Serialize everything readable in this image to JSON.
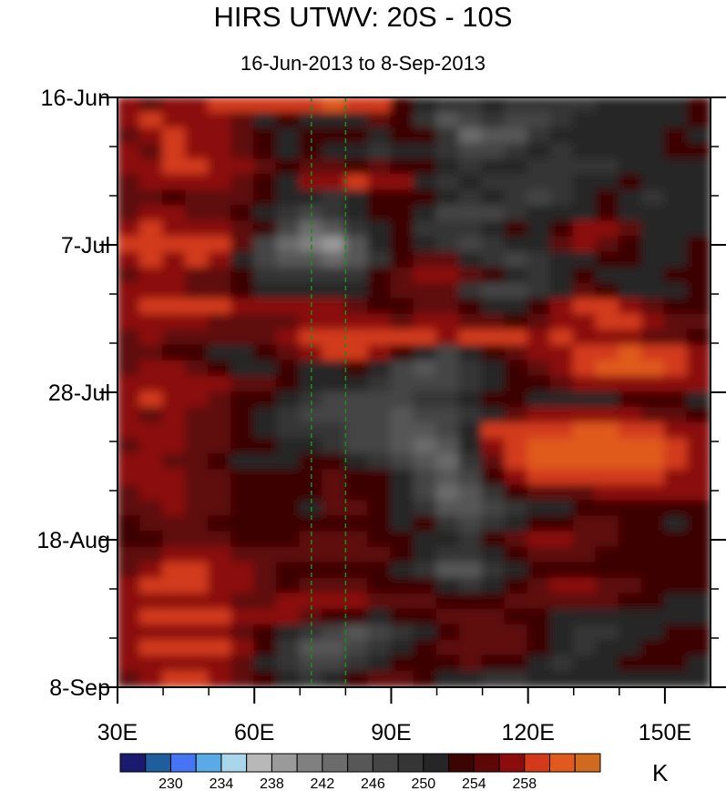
{
  "chart_data": {
    "type": "heatmap",
    "title": "HIRS UTWV: 20S - 10S",
    "subtitle": "16-Jun-2013 to 8-Sep-2013",
    "x_tick_labels": [
      "30E",
      "60E",
      "90E",
      "120E",
      "150E"
    ],
    "x_ticks": [
      30,
      60,
      90,
      120,
      150
    ],
    "xlim": [
      30,
      160
    ],
    "y_tick_labels": [
      "16-Jun",
      "7-Jul",
      "28-Jul",
      "18-Aug",
      "8-Sep"
    ],
    "y_ticks": [
      0,
      21,
      42,
      63,
      84
    ],
    "ylim": [
      0,
      84
    ],
    "y_direction": "time increases downward",
    "reference_lines_lon": [
      72.5,
      80
    ],
    "colorbar": {
      "units": "K",
      "levels": [
        228,
        230,
        232,
        234,
        236,
        238,
        240,
        242,
        244,
        246,
        248,
        250,
        252,
        254,
        256,
        258,
        260
      ],
      "tick_labels": [
        "230",
        "234",
        "238",
        "242",
        "246",
        "250",
        "254",
        "258"
      ],
      "tick_values": [
        230,
        234,
        238,
        242,
        246,
        250,
        254,
        258
      ],
      "colors": [
        "#1a1a6e",
        "#1f5e9c",
        "#4575f5",
        "#5aaae8",
        "#a9d6ea",
        "#b8b8b8",
        "#9a9a9a",
        "#808080",
        "#6b6b6b",
        "#575757",
        "#454545",
        "#353535",
        "#262626",
        "#3d0404",
        "#5e0707",
        "#8c0c0c",
        "#d23a1a",
        "#e05a1e",
        "#cf6a1f"
      ]
    },
    "field": [
      [
        256,
        255,
        257,
        256,
        258,
        258,
        258,
        258,
        259,
        260,
        259,
        258,
        253,
        250,
        249,
        248,
        250,
        249,
        249,
        248,
        249,
        250,
        251,
        250,
        251,
        252
      ],
      [
        257,
        258,
        257,
        256,
        256,
        255,
        251,
        252,
        251,
        250,
        251,
        254,
        253,
        249,
        245,
        247,
        248,
        246,
        247,
        249,
        250,
        250,
        251,
        250,
        251,
        252
      ],
      [
        255,
        257,
        258,
        257,
        256,
        254,
        252,
        250,
        252,
        253,
        252,
        250,
        252,
        252,
        248,
        243,
        244,
        245,
        248,
        250,
        251,
        250,
        250,
        251,
        252,
        251
      ],
      [
        256,
        255,
        259,
        257,
        256,
        255,
        253,
        251,
        252,
        251,
        250,
        249,
        251,
        250,
        249,
        246,
        247,
        249,
        250,
        249,
        250,
        251,
        250,
        251,
        252,
        252
      ],
      [
        257,
        256,
        258,
        259,
        257,
        256,
        254,
        253,
        255,
        254,
        253,
        254,
        252,
        252,
        250,
        249,
        250,
        251,
        249,
        248,
        248,
        249,
        250,
        251,
        250,
        251
      ],
      [
        255,
        256,
        256,
        257,
        256,
        255,
        253,
        251,
        256,
        257,
        258,
        257,
        256,
        251,
        249,
        250,
        249,
        248,
        248,
        249,
        250,
        251,
        252,
        250,
        251,
        251
      ],
      [
        254,
        255,
        253,
        254,
        255,
        255,
        252,
        251,
        250,
        249,
        250,
        252,
        253,
        252,
        250,
        249,
        250,
        248,
        247,
        248,
        250,
        252,
        250,
        249,
        250,
        251
      ],
      [
        255,
        256,
        256,
        255,
        254,
        253,
        251,
        248,
        247,
        249,
        251,
        252,
        253,
        250,
        247,
        246,
        247,
        249,
        250,
        251,
        251,
        252,
        251,
        250,
        250,
        251
      ],
      [
        257,
        258,
        257,
        257,
        256,
        255,
        252,
        247,
        243,
        245,
        248,
        251,
        252,
        249,
        248,
        248,
        250,
        252,
        251,
        252,
        256,
        257,
        254,
        251,
        250,
        251
      ],
      [
        258,
        258,
        258,
        259,
        258,
        254,
        247,
        243,
        240,
        239,
        244,
        250,
        252,
        251,
        248,
        247,
        249,
        250,
        251,
        255,
        256,
        255,
        253,
        251,
        251,
        252
      ],
      [
        257,
        258,
        257,
        258,
        257,
        251,
        246,
        245,
        244,
        242,
        245,
        249,
        253,
        255,
        254,
        250,
        248,
        247,
        248,
        250,
        251,
        253,
        252,
        250,
        251,
        252
      ],
      [
        255,
        256,
        256,
        255,
        254,
        252,
        249,
        248,
        249,
        248,
        249,
        252,
        255,
        256,
        257,
        255,
        252,
        250,
        249,
        250,
        252,
        251,
        251,
        250,
        252,
        252
      ],
      [
        256,
        257,
        256,
        255,
        254,
        252,
        251,
        250,
        251,
        250,
        251,
        253,
        254,
        255,
        254,
        249,
        247,
        246,
        248,
        250,
        254,
        253,
        251,
        250,
        251,
        252
      ],
      [
        257,
        258,
        258,
        259,
        258,
        256,
        256,
        257,
        257,
        256,
        255,
        253,
        253,
        254,
        254,
        252,
        250,
        250,
        252,
        256,
        258,
        258,
        256,
        254,
        253,
        252
      ],
      [
        256,
        257,
        256,
        256,
        255,
        255,
        254,
        254,
        256,
        257,
        257,
        256,
        255,
        256,
        256,
        255,
        254,
        253,
        254,
        257,
        257,
        258,
        258,
        257,
        255,
        255
      ],
      [
        255,
        256,
        255,
        254,
        254,
        255,
        255,
        256,
        258,
        258,
        258,
        259,
        258,
        258,
        257,
        258,
        258,
        258,
        257,
        258,
        257,
        256,
        256,
        255,
        254,
        253
      ],
      [
        254,
        255,
        253,
        252,
        251,
        251,
        252,
        254,
        256,
        258,
        258,
        256,
        253,
        250,
        247,
        250,
        253,
        254,
        256,
        257,
        258,
        259,
        260,
        259,
        258,
        256
      ],
      [
        255,
        256,
        256,
        255,
        253,
        251,
        251,
        252,
        251,
        251,
        253,
        250,
        247,
        245,
        246,
        248,
        251,
        253,
        255,
        256,
        259,
        260,
        260,
        260,
        259,
        257
      ],
      [
        256,
        256,
        256,
        256,
        256,
        255,
        254,
        252,
        250,
        250,
        251,
        249,
        247,
        246,
        247,
        249,
        250,
        252,
        253,
        254,
        256,
        257,
        257,
        257,
        256,
        256
      ],
      [
        257,
        258,
        257,
        256,
        255,
        253,
        252,
        250,
        248,
        247,
        247,
        246,
        246,
        248,
        249,
        250,
        252,
        253,
        251,
        251,
        250,
        251,
        252,
        252,
        252,
        251
      ],
      [
        256,
        255,
        256,
        255,
        254,
        253,
        251,
        249,
        247,
        246,
        247,
        246,
        245,
        246,
        247,
        248,
        250,
        254,
        256,
        257,
        257,
        257,
        256,
        255,
        254,
        253
      ],
      [
        256,
        257,
        256,
        255,
        254,
        252,
        251,
        249,
        248,
        248,
        247,
        246,
        244,
        245,
        246,
        250,
        258,
        259,
        259,
        259,
        260,
        260,
        259,
        258,
        257,
        256
      ],
      [
        255,
        256,
        256,
        255,
        254,
        253,
        252,
        251,
        250,
        248,
        247,
        246,
        244,
        243,
        245,
        250,
        257,
        259,
        260,
        260,
        260,
        260,
        260,
        260,
        258,
        257
      ],
      [
        256,
        257,
        255,
        254,
        252,
        251,
        251,
        251,
        253,
        252,
        251,
        249,
        247,
        244,
        243,
        248,
        255,
        258,
        260,
        260,
        260,
        260,
        260,
        260,
        258,
        257
      ],
      [
        256,
        256,
        256,
        255,
        254,
        253,
        253,
        252,
        253,
        254,
        253,
        252,
        250,
        246,
        245,
        247,
        252,
        256,
        258,
        259,
        259,
        259,
        259,
        258,
        257,
        256
      ],
      [
        255,
        256,
        256,
        255,
        254,
        253,
        252,
        252,
        253,
        254,
        253,
        252,
        250,
        247,
        243,
        245,
        249,
        252,
        254,
        255,
        255,
        256,
        256,
        256,
        256,
        256
      ],
      [
        254,
        255,
        256,
        255,
        254,
        253,
        252,
        252,
        251,
        254,
        254,
        252,
        251,
        249,
        244,
        244,
        246,
        248,
        250,
        251,
        252,
        252,
        253,
        252,
        252,
        252
      ],
      [
        253,
        254,
        255,
        254,
        253,
        252,
        252,
        252,
        252,
        253,
        253,
        252,
        251,
        252,
        249,
        247,
        248,
        250,
        252,
        253,
        254,
        254,
        253,
        252,
        251,
        252
      ],
      [
        252,
        253,
        255,
        255,
        254,
        253,
        253,
        253,
        254,
        254,
        254,
        253,
        252,
        251,
        250,
        249,
        252,
        255,
        256,
        257,
        255,
        254,
        252,
        252,
        253,
        252
      ],
      [
        254,
        255,
        256,
        257,
        256,
        255,
        254,
        254,
        255,
        255,
        255,
        254,
        252,
        250,
        248,
        248,
        250,
        252,
        254,
        255,
        254,
        253,
        253,
        252,
        253,
        252
      ],
      [
        255,
        257,
        258,
        258,
        257,
        256,
        254,
        253,
        253,
        253,
        253,
        252,
        251,
        248,
        244,
        245,
        248,
        250,
        252,
        253,
        253,
        253,
        253,
        252,
        252,
        252
      ],
      [
        257,
        258,
        258,
        258,
        257,
        256,
        254,
        253,
        254,
        254,
        254,
        253,
        252,
        253,
        251,
        249,
        250,
        252,
        254,
        256,
        256,
        255,
        254,
        253,
        253,
        252
      ],
      [
        256,
        257,
        257,
        257,
        256,
        255,
        255,
        256,
        256,
        256,
        256,
        255,
        254,
        254,
        253,
        253,
        253,
        254,
        255,
        255,
        255,
        254,
        253,
        252,
        251,
        251
      ],
      [
        257,
        258,
        258,
        258,
        258,
        257,
        256,
        256,
        255,
        253,
        252,
        251,
        252,
        253,
        254,
        254,
        254,
        253,
        252,
        251,
        250,
        250,
        250,
        250,
        250,
        251
      ],
      [
        256,
        257,
        257,
        257,
        256,
        255,
        253,
        250,
        248,
        246,
        245,
        246,
        249,
        251,
        253,
        254,
        255,
        254,
        253,
        251,
        249,
        249,
        250,
        251,
        252,
        252
      ],
      [
        257,
        258,
        259,
        259,
        258,
        256,
        252,
        248,
        245,
        244,
        246,
        248,
        250,
        252,
        254,
        255,
        255,
        254,
        252,
        250,
        249,
        250,
        251,
        252,
        253,
        252
      ],
      [
        256,
        257,
        257,
        257,
        256,
        254,
        251,
        249,
        247,
        247,
        248,
        250,
        252,
        253,
        253,
        254,
        253,
        252,
        250,
        249,
        250,
        251,
        252,
        252,
        252,
        251
      ],
      [
        255,
        257,
        258,
        258,
        257,
        255,
        252,
        250,
        249,
        250,
        252,
        254,
        254,
        253,
        251,
        250,
        249,
        249,
        250,
        251,
        251,
        251,
        251,
        251,
        251,
        251
      ]
    ]
  }
}
